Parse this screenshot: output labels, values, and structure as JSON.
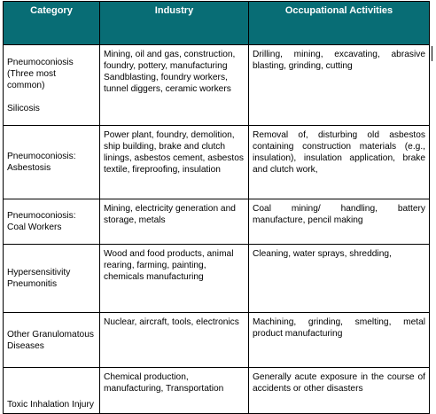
{
  "headers": {
    "category": "Category",
    "industry": "Industry",
    "activities": "Occupational Activities"
  },
  "rows": [
    {
      "category": "Pneumoconiosis (Three most common)",
      "category_sub": "Silicosis",
      "industry": "Mining, oil and gas, construction, foundry, pottery, manufacturing Sandblasting, foundry workers, tunnel diggers, ceramic workers",
      "activities": "Drilling, mining, excavating, abrasive blasting, grinding, cutting"
    },
    {
      "category": "Pneumoconiosis: Asbestosis",
      "industry": "Power plant, foundry, demolition, ship building, brake and clutch linings, asbestos cement, asbestos textile, fireproofing, insulation",
      "activities": "Removal of, disturbing old asbestos containing construction materials (e.g., insulation), insulation application, brake and clutch work,"
    },
    {
      "category": "Pneumoconiosis: Coal Workers",
      "industry": "Mining, electricity generation and storage, metals",
      "activities": "Coal mining/ handling, battery manufacture, pencil making"
    },
    {
      "category": "Hypersensitivity Pneumonitis",
      "industry": "Wood and food products, animal rearing, farming, painting, chemicals manufacturing",
      "activities": "Cleaning, water sprays, shredding,"
    },
    {
      "category": "Other Granulomatous Diseases",
      "industry": "Nuclear, aircraft, tools, electronics",
      "activities": "Machining, grinding, smelting, metal product manufacturing"
    },
    {
      "category": "Toxic Inhalation Injury",
      "industry": "Chemical production, manufacturing, Transportation",
      "activities": "Generally acute exposure in the course of accidents or other disasters"
    }
  ]
}
